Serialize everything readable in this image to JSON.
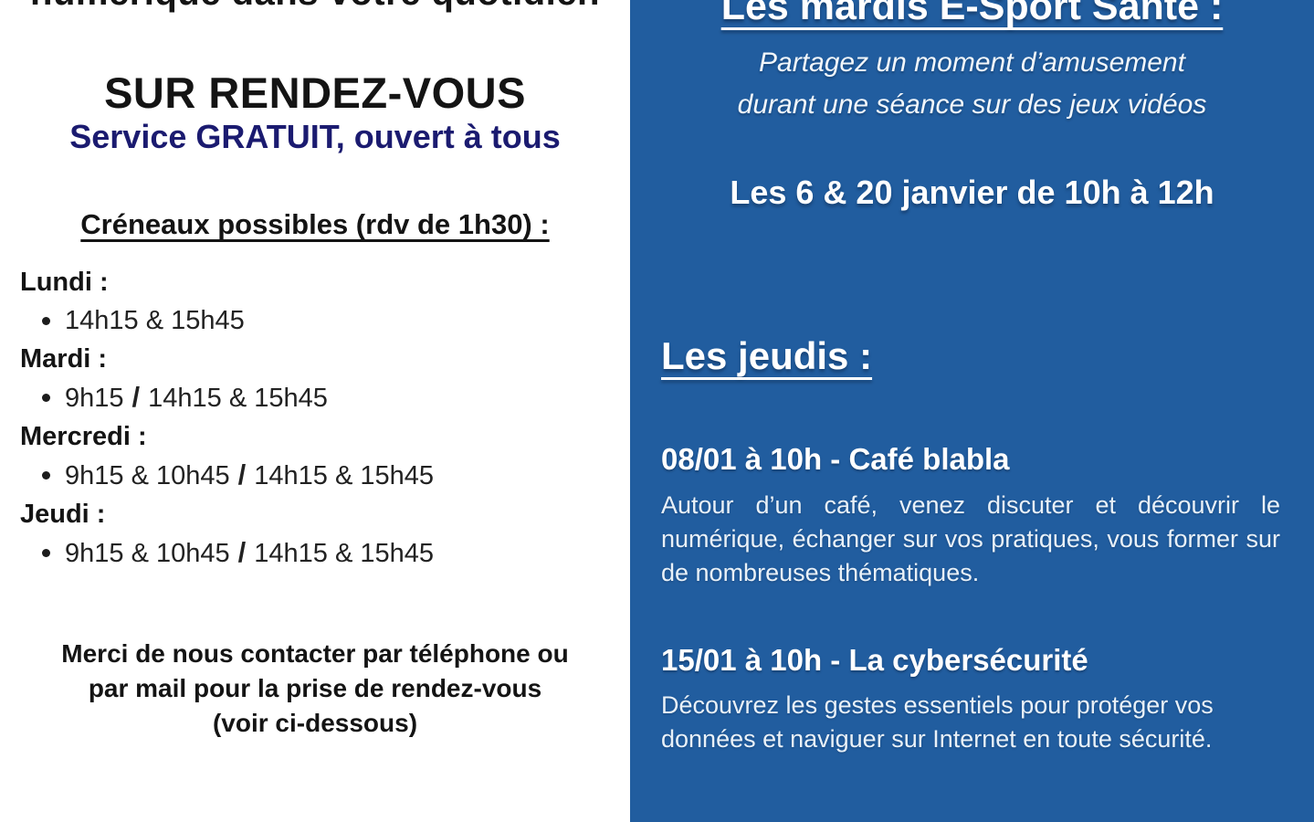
{
  "colors": {
    "panel_blue": "#215d9f",
    "navy_text": "#1b1b70",
    "ink_text": "#141414",
    "soft_white_text": "#e9f1f8"
  },
  "left_column": {
    "cropped_top_line": "numérique dans votre quotidien",
    "title": "SUR RENDEZ-VOUS",
    "subtitle": "Service GRATUIT, ouvert à tous",
    "slots_heading": "Créneaux possibles (rdv de 1h30) :",
    "schedule": [
      {
        "day": "Lundi :",
        "afternoon": "14h15 & 15h45"
      },
      {
        "day": "Mardi :",
        "morning": "9h15",
        "afternoon": "14h15 & 15h45"
      },
      {
        "day": "Mercredi :",
        "morning": "9h15 & 10h45",
        "afternoon": "14h15 & 15h45"
      },
      {
        "day": "Jeudi :",
        "morning": "9h15 & 10h45",
        "afternoon": "14h15 & 15h45"
      }
    ],
    "contact_lines": [
      "Merci de nous contacter par téléphone ou",
      "par mail pour la prise de rendez-vous",
      "(voir ci-dessous)"
    ]
  },
  "right_column": {
    "esport_heading": "Les mardis E-Sport Santé :",
    "esport_tagline_lines": [
      "Partagez un moment d’amusement",
      "durant une séance sur des jeux vidéos"
    ],
    "esport_dates": "Les 6 & 20 janvier de 10h à 12h",
    "jeudis_heading": "Les jeudis :",
    "events": [
      {
        "title": "08/01 à 10h - Café blabla",
        "description": "Autour d’un café, venez discuter et découvrir le numérique, échanger sur vos pratiques, vous former sur de nombreuses thématiques."
      },
      {
        "title": "15/01 à 10h - La cybersécurité",
        "description": "Découvrez les gestes essentiels pour protéger vos données et naviguer sur Internet en toute sécurité."
      }
    ]
  }
}
